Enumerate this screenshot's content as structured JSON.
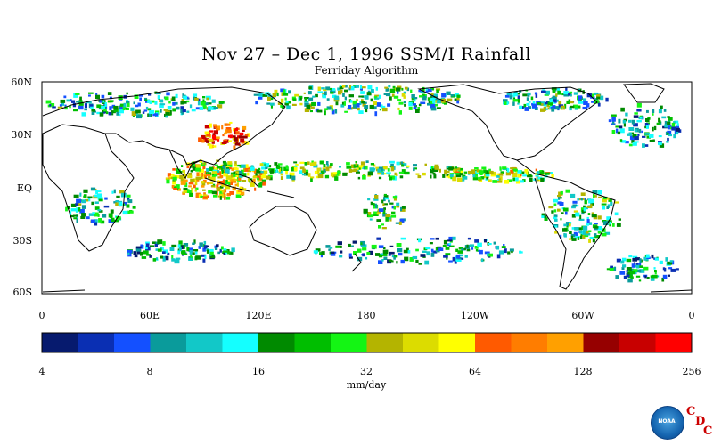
{
  "title": "Nov 27 – Dec 1, 1996 SSM/I Rainfall",
  "subtitle": "Ferriday Algorithm",
  "lat_labels": [
    "60N",
    "30N",
    "EQ",
    "30S",
    "60S"
  ],
  "lon_labels": [
    "0",
    "60E",
    "120E",
    "180",
    "120W",
    "60W",
    "0"
  ],
  "colorbar": {
    "colors": [
      "#061a6e",
      "#0a2fb3",
      "#1450ff",
      "#0a9b9b",
      "#12c8c8",
      "#14ffff",
      "#008a00",
      "#00be00",
      "#14f514",
      "#b4b400",
      "#dcdc00",
      "#ffff00",
      "#ff5a00",
      "#ff7d00",
      "#ffa000",
      "#960000",
      "#c80000",
      "#ff0000"
    ],
    "tick_labels": [
      "4",
      "8",
      "16",
      "32",
      "64",
      "128",
      "256"
    ],
    "units": "mm/day"
  },
  "logo": {
    "text": "NOAA",
    "c1": "C",
    "c2": "D",
    "c3": "C"
  }
}
